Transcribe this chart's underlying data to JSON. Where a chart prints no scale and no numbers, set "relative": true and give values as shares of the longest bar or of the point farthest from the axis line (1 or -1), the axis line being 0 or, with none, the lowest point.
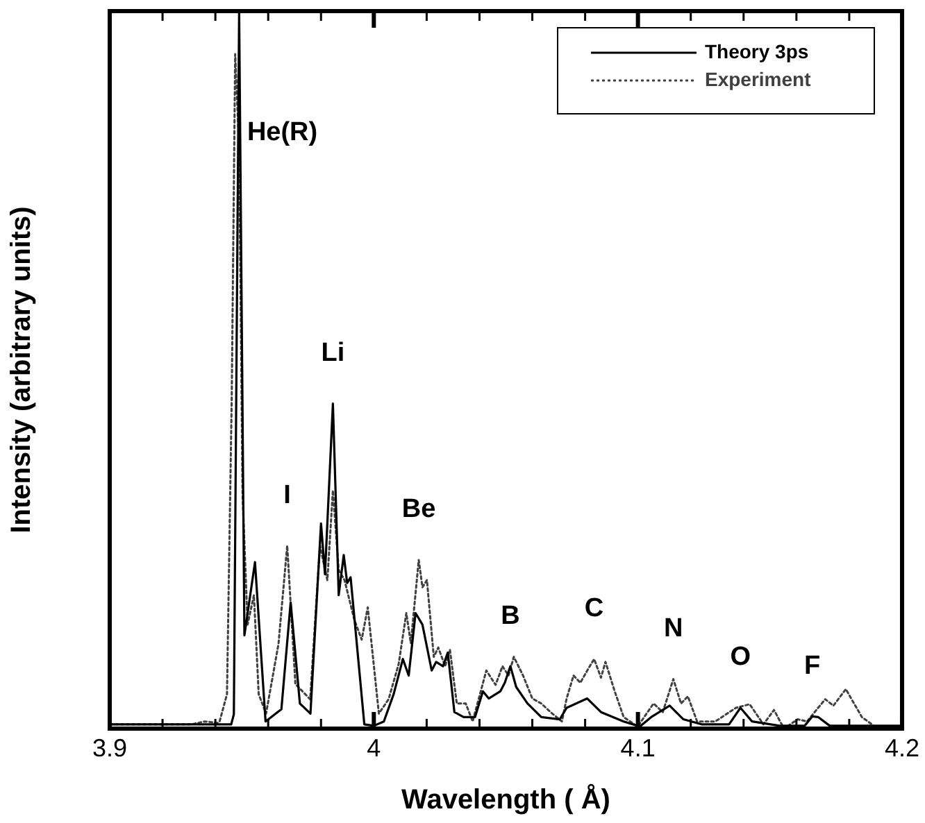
{
  "chart_data": {
    "type": "line",
    "xlabel": "Wavelength ( Å)",
    "ylabel": "Intensity (arbitrary units)",
    "relative": true,
    "xlim": [
      3.9,
      4.2
    ],
    "xticks": [
      3.9,
      {
        "value": 3.92,
        "label": null
      },
      {
        "value": 3.94,
        "label": null
      },
      {
        "value": 3.96,
        "label": null
      },
      {
        "value": 3.98,
        "label": null
      },
      4,
      {
        "value": 4.02,
        "label": null
      },
      {
        "value": 4.04,
        "label": null
      },
      {
        "value": 4.06,
        "label": null
      },
      {
        "value": 4.08,
        "label": null
      },
      4.1,
      {
        "value": 4.12,
        "label": null
      },
      {
        "value": 4.14,
        "label": null
      },
      {
        "value": 4.16,
        "label": null
      },
      {
        "value": 4.18,
        "label": null
      },
      4.2
    ],
    "grid": false,
    "legend": "top right",
    "marker": "none",
    "series": [
      {
        "name": "Theory 3ps",
        "color": "#000000",
        "line_style": "solid",
        "x": [
          3.9,
          3.946,
          3.947,
          3.949,
          3.951,
          3.955,
          3.959,
          3.965,
          3.9685,
          3.972,
          3.976,
          3.98,
          3.9815,
          3.9845,
          3.9867,
          3.9886,
          3.9899,
          3.9912,
          3.9964,
          4.0,
          4.0038,
          4.0075,
          4.011,
          4.0132,
          4.0158,
          4.0184,
          4.0219,
          4.0236,
          4.0262,
          4.028,
          4.0305,
          4.034,
          4.0383,
          4.0413,
          4.0435,
          4.0479,
          4.0496,
          4.0517,
          4.0539,
          4.0582,
          4.0634,
          4.0704,
          4.073,
          4.0808,
          4.086,
          4.0946,
          4.1007,
          4.105,
          4.112,
          4.1172,
          4.1241,
          4.1345,
          4.1388,
          4.1432,
          4.1536,
          4.1631,
          4.166,
          4.1683,
          4.1726,
          4.1918,
          4.2
        ],
        "values": [
          0.006,
          0.006,
          0.02,
          1,
          0.13,
          0.232,
          0.01,
          0.027,
          0.176,
          0.035,
          0.021,
          0.286,
          0.215,
          0.453,
          0.186,
          0.242,
          0.203,
          0.211,
          0.006,
          0.004,
          0.01,
          0.048,
          0.097,
          0.074,
          0.161,
          0.145,
          0.081,
          0.093,
          0.087,
          0.106,
          0.023,
          0.016,
          0.016,
          0.052,
          0.042,
          0.052,
          0.064,
          0.087,
          0.058,
          0.035,
          0.016,
          0.013,
          0.029,
          0.042,
          0.023,
          0.01,
          0.003,
          0.016,
          0.032,
          0.013,
          0.006,
          0.006,
          0.029,
          0.01,
          0.004,
          0.004,
          0.017,
          0.016,
          0.004,
          0.004,
          0.004
        ]
      },
      {
        "name": "Experiment",
        "color": "#404040",
        "line_style": "dotted",
        "x": [
          3.9,
          3.931,
          3.936,
          3.941,
          3.9416,
          3.9444,
          3.9462,
          3.9475,
          3.949,
          3.9503,
          3.9522,
          3.9546,
          3.9564,
          3.9592,
          3.9639,
          3.9672,
          3.9703,
          3.9759,
          3.9796,
          3.9824,
          3.9845,
          3.9867,
          3.9889,
          3.9926,
          3.9954,
          3.9977,
          4.0019,
          4.0056,
          4.0094,
          4.0123,
          4.014,
          4.017,
          4.0184,
          4.0201,
          4.0227,
          4.0244,
          4.027,
          4.0288,
          4.0314,
          4.0348,
          4.0374,
          4.0426,
          4.0461,
          4.0487,
          4.051,
          4.053,
          4.0565,
          4.06,
          4.0634,
          4.0669,
          4.0712,
          4.073,
          4.0756,
          4.0782,
          4.0808,
          4.0834,
          4.086,
          4.0877,
          4.0912,
          4.0946,
          4.0999,
          4.1059,
          4.1094,
          4.1134,
          4.1163,
          4.1189,
          4.1224,
          4.1293,
          4.1371,
          4.1423,
          4.1475,
          4.1515,
          4.1553,
          4.1605,
          4.164,
          4.1709,
          4.174,
          4.1787,
          4.1848,
          4.1908,
          4.2
        ],
        "values": [
          0.006,
          0.006,
          0.01,
          0.008,
          0.01,
          0.048,
          0.462,
          0.94,
          0.81,
          0.325,
          0.145,
          0.186,
          0.048,
          0.021,
          0.118,
          0.255,
          0.062,
          0.041,
          0.255,
          0.207,
          0.332,
          0.221,
          0.207,
          0.152,
          0.124,
          0.169,
          0.021,
          0.041,
          0.09,
          0.161,
          0.119,
          0.235,
          0.197,
          0.207,
          0.1,
          0.113,
          0.087,
          0.11,
          0.035,
          0.035,
          0.01,
          0.081,
          0.061,
          0.087,
          0.074,
          0.1,
          0.074,
          0.042,
          0.035,
          0.023,
          0.01,
          0.042,
          0.074,
          0.064,
          0.081,
          0.097,
          0.071,
          0.093,
          0.052,
          0.016,
          0.003,
          0.035,
          0.023,
          0.069,
          0.035,
          0.045,
          0.01,
          0.01,
          0.029,
          0.034,
          0.006,
          0.026,
          0.0,
          0.013,
          0.01,
          0.041,
          0.032,
          0.055,
          0.016,
          0.0,
          0.0
        ]
      }
    ],
    "annotations": [
      {
        "text": "He(R)",
        "x": 3.9494,
        "y": 0.83
      },
      {
        "text": "I",
        "x": 3.9672,
        "y": 0.255
      },
      {
        "text": "Li",
        "x": 3.9845,
        "y": 0.453
      },
      {
        "text": "Be",
        "x": 4.017,
        "y": 0.235
      },
      {
        "text": "B",
        "x": 4.0517,
        "y": 0.087
      },
      {
        "text": "C",
        "x": 4.0834,
        "y": 0.097
      },
      {
        "text": "N",
        "x": 4.1134,
        "y": 0.069
      },
      {
        "text": "O",
        "x": 4.1388,
        "y": 0.029
      },
      {
        "text": "F",
        "x": 4.166,
        "y": 0.017
      }
    ]
  }
}
